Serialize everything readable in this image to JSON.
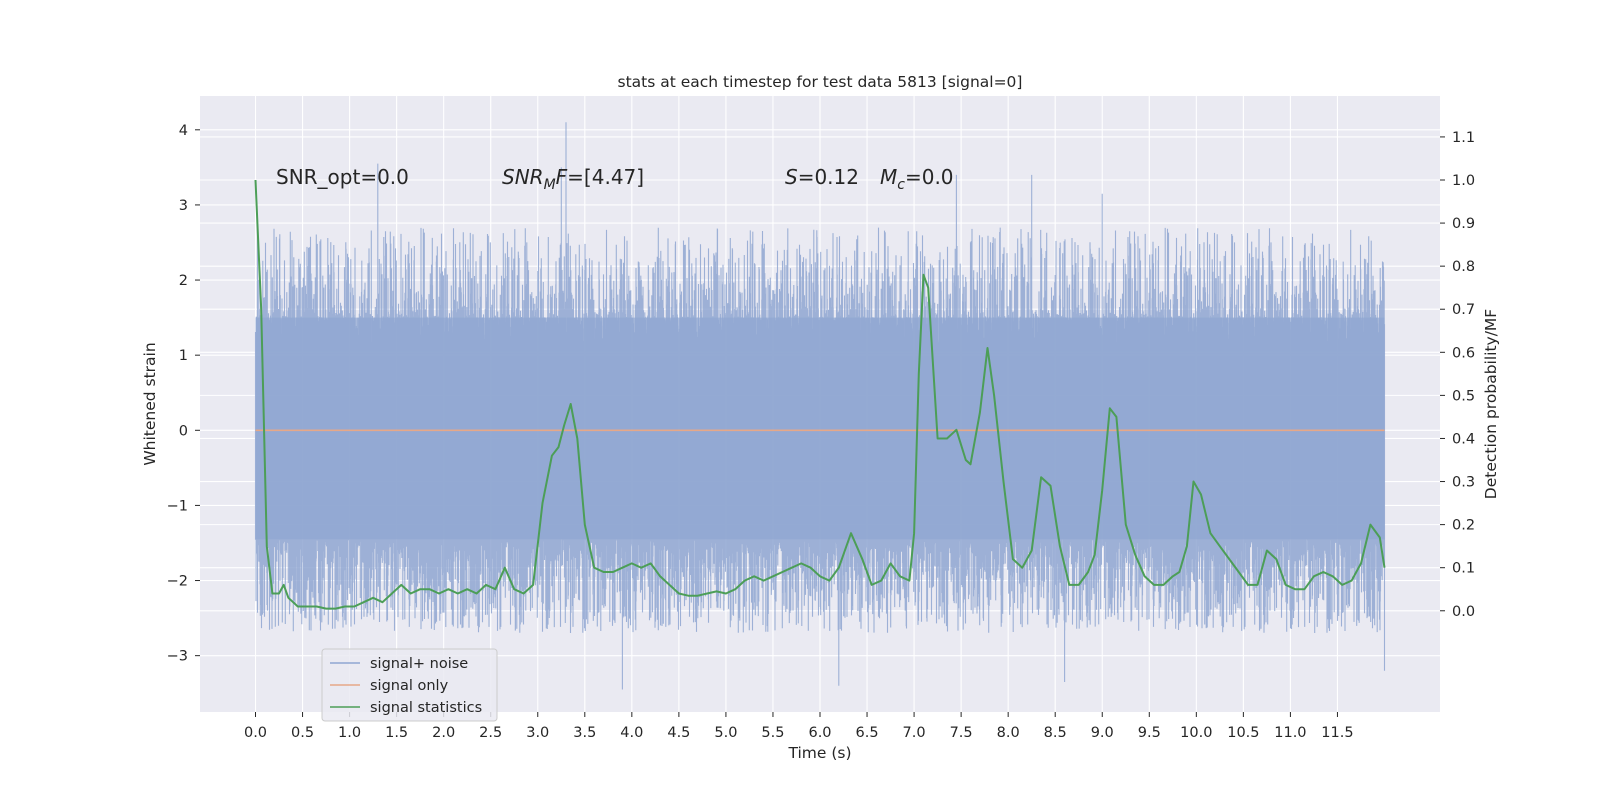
{
  "chart_data": {
    "type": "line",
    "title": "stats at each timestep for test data 5813 [signal=0]",
    "xlabel": "Time (s)",
    "ylabel": "Whitened strain",
    "ylabel_right": "Detection probability/MF",
    "xlim": [
      -0.59,
      12.59
    ],
    "ylim": [
      -3.75,
      4.45
    ],
    "ylim_right": [
      -0.235,
      1.195
    ],
    "x_ticks": [
      "0.0",
      "0.5",
      "1.0",
      "1.5",
      "2.0",
      "2.5",
      "3.0",
      "3.5",
      "4.0",
      "4.5",
      "5.0",
      "5.5",
      "6.0",
      "6.5",
      "7.0",
      "7.5",
      "8.0",
      "8.5",
      "9.0",
      "9.5",
      "10.0",
      "10.5",
      "11.0",
      "11.5"
    ],
    "y_ticks": [
      "−3",
      "−2",
      "−1",
      "0",
      "1",
      "2",
      "3",
      "4"
    ],
    "y_ticks_right": [
      "0.0",
      "0.1",
      "0.2",
      "0.3",
      "0.4",
      "0.5",
      "0.6",
      "0.7",
      "0.8",
      "0.9",
      "1.0",
      "1.1"
    ],
    "grid": true,
    "annotations": {
      "snr_opt": "SNR_opt=0.0",
      "snr_mf_symbol": "SNR",
      "snr_mf_sub": "M",
      "snr_mf_suffix": "F",
      "snr_mf_value": "=[4.47]",
      "s_symbol": "S",
      "s_value": "=0.12",
      "mc_symbol": "M",
      "mc_sub": "c",
      "mc_value": "=0.0"
    },
    "legend": {
      "position": "lower-left",
      "entries": [
        {
          "label": "signal+ noise",
          "color": "#8fa6d1"
        },
        {
          "label": "signal only",
          "color": "#e6a888"
        },
        {
          "label": "signal statistics",
          "color": "#4c9e57"
        }
      ]
    },
    "series": [
      {
        "name": "signal+ noise",
        "axis": "left",
        "style": "dense-noise",
        "t_range": [
          0.0,
          12.0
        ],
        "band": [
          -1.45,
          1.5
        ],
        "typical_max": 2.7,
        "typical_min": -2.7,
        "peaks": [
          [
            3.3,
            4.1
          ],
          [
            3.25,
            3.5
          ],
          [
            1.3,
            3.55
          ],
          [
            7.45,
            3.4
          ],
          [
            8.25,
            3.4
          ],
          [
            9.0,
            3.15
          ],
          [
            6.2,
            -3.4
          ],
          [
            3.9,
            -3.45
          ],
          [
            8.6,
            -3.35
          ],
          [
            12.0,
            -3.2
          ]
        ]
      },
      {
        "name": "signal only",
        "axis": "left",
        "x": [
          0.0,
          12.0
        ],
        "y": [
          0.0,
          0.0
        ]
      },
      {
        "name": "signal statistics",
        "axis": "right",
        "x": [
          0.0,
          0.06,
          0.12,
          0.18,
          0.25,
          0.3,
          0.35,
          0.45,
          0.55,
          0.65,
          0.75,
          0.85,
          0.95,
          1.05,
          1.15,
          1.25,
          1.35,
          1.45,
          1.55,
          1.65,
          1.75,
          1.85,
          1.95,
          2.05,
          2.15,
          2.25,
          2.35,
          2.45,
          2.55,
          2.65,
          2.75,
          2.85,
          2.95,
          3.05,
          3.15,
          3.22,
          3.28,
          3.35,
          3.42,
          3.5,
          3.6,
          3.7,
          3.8,
          3.9,
          4.0,
          4.1,
          4.2,
          4.3,
          4.4,
          4.5,
          4.6,
          4.7,
          4.8,
          4.9,
          5.0,
          5.1,
          5.2,
          5.3,
          5.4,
          5.5,
          5.6,
          5.7,
          5.8,
          5.9,
          6.0,
          6.1,
          6.2,
          6.33,
          6.45,
          6.55,
          6.65,
          6.75,
          6.85,
          6.95,
          7.0,
          7.05,
          7.1,
          7.15,
          7.25,
          7.35,
          7.45,
          7.55,
          7.6,
          7.7,
          7.78,
          7.85,
          7.95,
          8.05,
          8.15,
          8.25,
          8.35,
          8.45,
          8.55,
          8.65,
          8.75,
          8.85,
          8.92,
          9.0,
          9.08,
          9.15,
          9.25,
          9.35,
          9.45,
          9.55,
          9.65,
          9.75,
          9.82,
          9.9,
          9.97,
          10.05,
          10.15,
          10.25,
          10.35,
          10.45,
          10.55,
          10.65,
          10.75,
          10.85,
          10.95,
          11.05,
          11.15,
          11.25,
          11.35,
          11.45,
          11.55,
          11.65,
          11.75,
          11.85,
          11.95,
          12.0
        ],
        "y": [
          1.0,
          0.7,
          0.15,
          0.04,
          0.04,
          0.06,
          0.03,
          0.01,
          0.01,
          0.01,
          0.005,
          0.005,
          0.01,
          0.01,
          0.02,
          0.03,
          0.02,
          0.04,
          0.06,
          0.04,
          0.05,
          0.05,
          0.04,
          0.05,
          0.04,
          0.05,
          0.04,
          0.06,
          0.05,
          0.1,
          0.05,
          0.04,
          0.06,
          0.25,
          0.36,
          0.38,
          0.43,
          0.48,
          0.4,
          0.2,
          0.1,
          0.09,
          0.09,
          0.1,
          0.11,
          0.1,
          0.11,
          0.08,
          0.06,
          0.04,
          0.035,
          0.035,
          0.04,
          0.045,
          0.04,
          0.05,
          0.07,
          0.08,
          0.07,
          0.08,
          0.09,
          0.1,
          0.11,
          0.1,
          0.08,
          0.07,
          0.1,
          0.18,
          0.12,
          0.06,
          0.07,
          0.11,
          0.08,
          0.07,
          0.18,
          0.55,
          0.78,
          0.75,
          0.4,
          0.4,
          0.42,
          0.35,
          0.34,
          0.46,
          0.61,
          0.5,
          0.3,
          0.12,
          0.1,
          0.14,
          0.31,
          0.29,
          0.15,
          0.06,
          0.06,
          0.09,
          0.13,
          0.28,
          0.47,
          0.45,
          0.2,
          0.13,
          0.08,
          0.06,
          0.06,
          0.08,
          0.09,
          0.15,
          0.3,
          0.27,
          0.18,
          0.15,
          0.12,
          0.09,
          0.06,
          0.06,
          0.14,
          0.12,
          0.06,
          0.05,
          0.05,
          0.08,
          0.09,
          0.08,
          0.06,
          0.07,
          0.11,
          0.2,
          0.17,
          0.1
        ]
      }
    ]
  }
}
